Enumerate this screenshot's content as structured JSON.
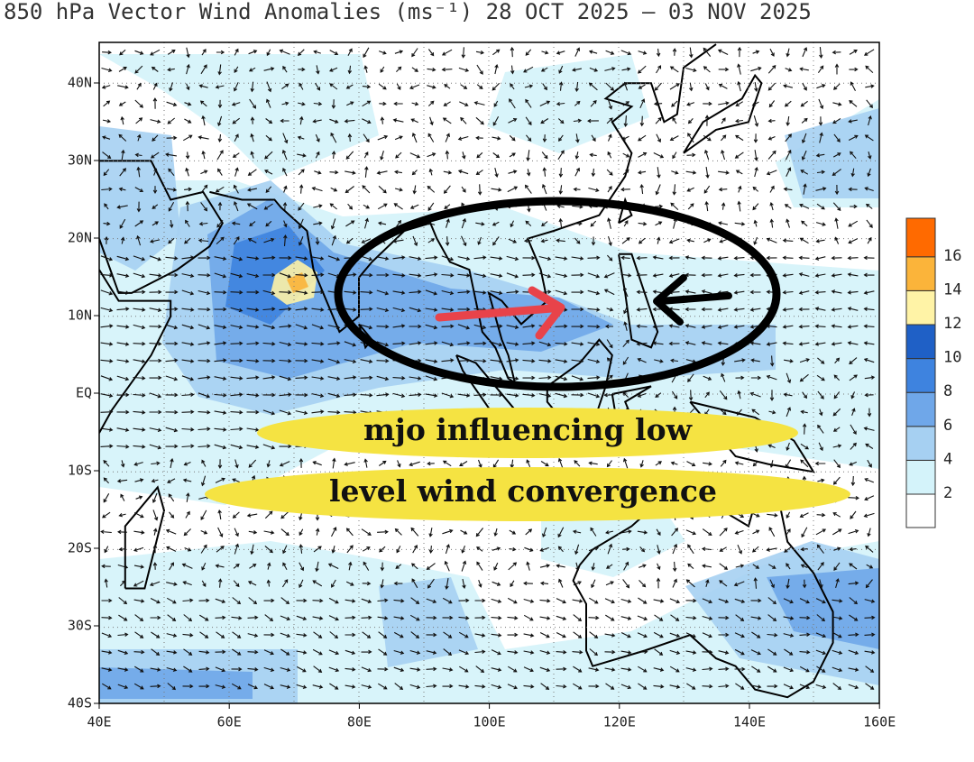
{
  "title": "850 hPa Vector Wind Anomalies (ms⁻¹) 28 OCT 2025 – 03 NOV 2025",
  "map": {
    "lat_labels": [
      "40N",
      "30N",
      "20N",
      "10N",
      "EQ",
      "10S",
      "20S",
      "30S",
      "40S"
    ],
    "lon_labels": [
      "40E",
      "60E",
      "80E",
      "100E",
      "120E",
      "140E",
      "160E"
    ]
  },
  "legend": {
    "levels": [
      2,
      4,
      6,
      8,
      10,
      12,
      14,
      16
    ],
    "colors": [
      "#ffffff",
      "#d4f3fa",
      "#a6d0f2",
      "#6fa7e9",
      "#3e83df",
      "#1f60c6",
      "#fff3a6",
      "#fbb43a",
      "#ff6a00"
    ]
  },
  "annotation": {
    "lines": [
      "mjo influencing low",
      "level wind convergence"
    ]
  }
}
